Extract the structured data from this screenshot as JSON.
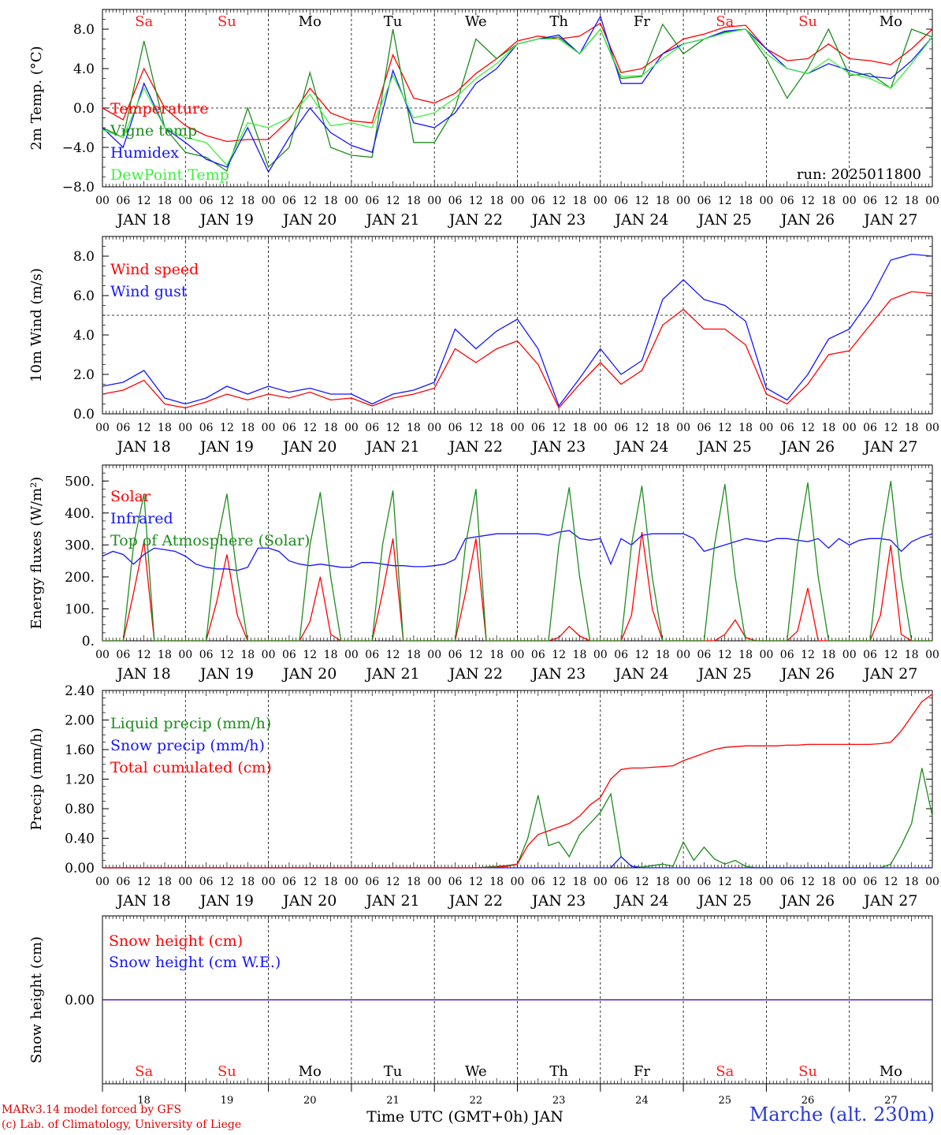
{
  "footer": {
    "credit_line_1": "MARv3.14 model forced by GFS",
    "credit_line_2": "(c) Lab. of Climatology, University of Liege",
    "station": "Marche (alt. 230m)",
    "time_axis_title": "Time UTC (GMT+0h) JAN"
  },
  "colors": {
    "red": "#ff0000",
    "darkgreen": "#1e8c1e",
    "blue": "#1515ff",
    "lightgreen": "#3cf03c",
    "label_red": "#ff1a1a"
  },
  "time_axis": {
    "days": [
      "JAN 18",
      "JAN 19",
      "JAN 20",
      "JAN 21",
      "JAN 22",
      "JAN 23",
      "JAN 24",
      "JAN 25",
      "JAN 26",
      "JAN 27"
    ],
    "weekdays": [
      "Sa",
      "Su",
      "Mo",
      "Tu",
      "We",
      "Th",
      "Fr",
      "Sa",
      "Su",
      "Mo"
    ],
    "weekday_colors": [
      "#ff1a1a",
      "#ff1a1a",
      "#000000",
      "#000000",
      "#000000",
      "#000000",
      "#000000",
      "#ff1a1a",
      "#ff1a1a",
      "#000000"
    ],
    "bottom_day_numbers": [
      "18",
      "19",
      "20",
      "21",
      "22",
      "23",
      "24",
      "25",
      "26",
      "27"
    ],
    "hour_labels": [
      "00",
      "06",
      "12",
      "18"
    ]
  },
  "chart_data": [
    {
      "type": "line",
      "ylabel": "2m Temp. (°C)",
      "ylim": [
        -8,
        10
      ],
      "yticks": [
        "8.0",
        "4.0",
        "0.0",
        "−4.0",
        "−8.0"
      ],
      "ytick_values": [
        8,
        4,
        0,
        -4,
        -8
      ],
      "reference_line": 0,
      "annotation": "run: 2025011800",
      "x_hours_from_jan18_00": [
        0,
        6,
        12,
        18,
        24,
        30,
        36,
        42,
        48,
        54,
        60,
        66,
        72,
        78,
        84,
        90,
        96,
        102,
        108,
        114,
        120,
        126,
        132,
        138,
        144,
        150,
        156,
        162,
        168,
        174,
        180,
        186,
        192,
        198,
        204,
        210,
        216,
        222,
        228,
        234,
        240
      ],
      "series": [
        {
          "name": "Temperature",
          "color": "red",
          "values": [
            0,
            -1.2,
            4,
            0,
            -1.8,
            -2.8,
            -3.4,
            -3.2,
            -3.2,
            -1.2,
            2,
            -0.5,
            -1.3,
            -1.5,
            5.4,
            1,
            0.5,
            1.5,
            3.5,
            5,
            6.8,
            7.3,
            7,
            7.3,
            8.6,
            3.6,
            4,
            5.5,
            7,
            7.5,
            8.2,
            8.4,
            6,
            4.8,
            5,
            6.5,
            5,
            4.8,
            4.4,
            6,
            8
          ]
        },
        {
          "name": "Vigne temp",
          "color": "darkgreen",
          "values": [
            -2,
            -3,
            6.8,
            -2,
            -4.5,
            -5,
            -6.4,
            0,
            -6,
            -4,
            3.6,
            -4,
            -4.8,
            -5,
            8,
            -3.5,
            -3.5,
            0,
            7,
            5,
            6.5,
            7,
            7.2,
            5.5,
            8,
            3,
            3.2,
            8.5,
            5.5,
            7,
            7.7,
            8,
            5,
            1,
            4,
            8,
            3.3,
            3.5,
            2,
            8,
            7.2
          ]
        },
        {
          "name": "Humidex",
          "color": "blue",
          "values": [
            -2,
            -4,
            2.5,
            -2,
            -3.5,
            -5.2,
            -6,
            -2,
            -6.5,
            -3,
            0,
            -2.5,
            -3.8,
            -4.5,
            3.8,
            -1.5,
            -2,
            -0.5,
            2.5,
            4,
            6.5,
            7,
            7.4,
            5.5,
            9.3,
            2.5,
            2.5,
            5.5,
            6.5,
            7,
            7.8,
            8,
            6,
            4,
            3.5,
            4.5,
            3.8,
            3.2,
            3,
            4.8,
            7.2
          ]
        },
        {
          "name": "DewPoint Temp",
          "color": "lightgreen",
          "values": [
            -2.2,
            -3,
            2,
            -2,
            -3,
            -3.5,
            -5.8,
            -1.5,
            -2,
            -1,
            1.4,
            -1.8,
            -1.5,
            -2,
            3.3,
            -1,
            -0.5,
            1,
            3,
            4.5,
            6.5,
            7,
            7,
            5.5,
            8,
            3.2,
            3.3,
            5,
            6.5,
            7,
            7.6,
            8,
            5.5,
            4,
            3.5,
            5,
            3.5,
            3,
            2,
            4.5,
            7.2
          ]
        }
      ]
    },
    {
      "type": "line",
      "ylabel": "10m Wind (m/s)",
      "ylim": [
        0,
        9
      ],
      "yticks": [
        "8.0",
        "6.0",
        "4.0",
        "2.0",
        "0.0"
      ],
      "ytick_values": [
        8,
        6,
        4,
        2,
        0
      ],
      "reference_line": 5,
      "x_hours_from_jan18_00": [
        0,
        6,
        12,
        18,
        24,
        30,
        36,
        42,
        48,
        54,
        60,
        66,
        72,
        78,
        84,
        90,
        96,
        102,
        108,
        114,
        120,
        126,
        132,
        138,
        144,
        150,
        156,
        162,
        168,
        174,
        180,
        186,
        192,
        198,
        204,
        210,
        216,
        222,
        228,
        234,
        240
      ],
      "series": [
        {
          "name": "Wind speed",
          "color": "red",
          "values": [
            1,
            1.2,
            1.7,
            0.5,
            0.3,
            0.6,
            1,
            0.7,
            1,
            0.8,
            1.1,
            0.7,
            0.8,
            0.4,
            0.8,
            1,
            1.3,
            3.3,
            2.6,
            3.3,
            3.7,
            2.5,
            0.3,
            1.5,
            2.6,
            1.5,
            2.2,
            4.5,
            5.3,
            4.3,
            4.3,
            3.5,
            1,
            0.5,
            1.5,
            3,
            3.2,
            4.5,
            5.8,
            6.2,
            6.1
          ]
        },
        {
          "name": "Wind gust",
          "color": "blue",
          "values": [
            1.4,
            1.6,
            2.2,
            0.8,
            0.5,
            0.8,
            1.4,
            1,
            1.4,
            1.1,
            1.3,
            1,
            1,
            0.5,
            1,
            1.2,
            1.6,
            4.3,
            3.3,
            4.2,
            4.8,
            3.3,
            0.4,
            1.8,
            3.3,
            2,
            2.7,
            5.8,
            6.8,
            5.8,
            5.5,
            4.7,
            1.3,
            0.7,
            2,
            3.8,
            4.3,
            5.8,
            7.8,
            8.1,
            8
          ]
        }
      ]
    },
    {
      "type": "line",
      "ylabel": "Energy fluxes (W/m²)",
      "ylim": [
        0,
        550
      ],
      "yticks": [
        "500.",
        "400.",
        "300.",
        "200.",
        "100.",
        "0."
      ],
      "ytick_values": [
        500,
        400,
        300,
        200,
        100,
        0
      ],
      "x_hours_from_jan18_00": [
        0,
        3,
        6,
        9,
        12,
        15,
        18,
        21,
        24,
        27,
        30,
        33,
        36,
        39,
        42,
        45,
        48,
        51,
        54,
        57,
        60,
        63,
        66,
        69,
        72,
        75,
        78,
        81,
        84,
        87,
        90,
        93,
        96,
        99,
        102,
        105,
        108,
        111,
        114,
        117,
        120,
        123,
        126,
        129,
        132,
        135,
        138,
        141,
        144,
        147,
        150,
        153,
        156,
        159,
        162,
        165,
        168,
        171,
        174,
        177,
        180,
        183,
        186,
        189,
        192,
        195,
        198,
        201,
        204,
        207,
        210,
        213,
        216,
        219,
        222,
        225,
        228,
        231,
        234,
        237,
        240
      ],
      "series": [
        {
          "name": "Solar",
          "color": "red",
          "values": [
            0,
            0,
            0,
            150,
            310,
            0,
            0,
            0,
            0,
            0,
            0,
            120,
            270,
            80,
            0,
            0,
            0,
            0,
            0,
            0,
            60,
            200,
            20,
            0,
            0,
            0,
            0,
            150,
            320,
            0,
            0,
            0,
            0,
            0,
            0,
            150,
            320,
            0,
            0,
            0,
            0,
            0,
            0,
            0,
            10,
            45,
            15,
            0,
            0,
            0,
            0,
            80,
            340,
            100,
            0,
            0,
            0,
            0,
            0,
            0,
            20,
            65,
            10,
            0,
            0,
            0,
            0,
            30,
            165,
            0,
            0,
            0,
            0,
            0,
            0,
            80,
            300,
            20,
            0,
            0,
            0
          ]
        },
        {
          "name": "Infrared",
          "color": "blue",
          "values": [
            265,
            280,
            270,
            240,
            270,
            290,
            285,
            280,
            265,
            240,
            230,
            225,
            225,
            220,
            230,
            290,
            290,
            280,
            250,
            240,
            235,
            240,
            235,
            230,
            230,
            245,
            245,
            240,
            235,
            235,
            232,
            232,
            235,
            240,
            255,
            320,
            325,
            330,
            335,
            335,
            335,
            335,
            335,
            330,
            340,
            345,
            320,
            315,
            320,
            240,
            320,
            300,
            330,
            335,
            335,
            335,
            335,
            320,
            280,
            290,
            300,
            310,
            320,
            315,
            310,
            320,
            320,
            315,
            310,
            320,
            290,
            320,
            300,
            315,
            320,
            320,
            315,
            280,
            310,
            325,
            335
          ]
        },
        {
          "name": "Top of Atmosphere (Solar)",
          "color": "darkgreen",
          "values": [
            0,
            0,
            0,
            300,
            460,
            0,
            0,
            0,
            0,
            0,
            0,
            300,
            460,
            200,
            0,
            0,
            0,
            0,
            0,
            0,
            300,
            465,
            200,
            0,
            0,
            0,
            0,
            300,
            470,
            0,
            0,
            0,
            0,
            0,
            0,
            300,
            475,
            0,
            0,
            0,
            0,
            0,
            0,
            0,
            300,
            480,
            200,
            0,
            0,
            0,
            0,
            300,
            485,
            200,
            0,
            0,
            0,
            0,
            0,
            300,
            490,
            200,
            0,
            0,
            0,
            0,
            0,
            300,
            495,
            200,
            0,
            0,
            0,
            0,
            0,
            300,
            500,
            200,
            0,
            0,
            0
          ]
        }
      ]
    },
    {
      "type": "line",
      "ylabel": "Precip (mm/h)",
      "ylim": [
        0,
        2.4
      ],
      "yticks": [
        "2.40",
        "2.00",
        "1.60",
        "1.20",
        "0.80",
        "0.40",
        "0.00"
      ],
      "ytick_values": [
        2.4,
        2.0,
        1.6,
        1.2,
        0.8,
        0.4,
        0.0
      ],
      "x_hours_from_jan18_00": [
        0,
        12,
        24,
        36,
        48,
        60,
        72,
        84,
        96,
        108,
        114,
        117,
        120,
        123,
        126,
        129,
        132,
        135,
        138,
        141,
        144,
        147,
        150,
        153,
        156,
        159,
        162,
        165,
        168,
        171,
        174,
        177,
        180,
        183,
        186,
        189,
        192,
        195,
        198,
        201,
        204,
        207,
        210,
        213,
        216,
        219,
        222,
        225,
        228,
        231,
        234,
        237,
        240
      ],
      "series": [
        {
          "name": "Liquid precip (mm/h)",
          "color": "darkgreen",
          "values": [
            0,
            0,
            0,
            0,
            0,
            0,
            0,
            0,
            0,
            0,
            0.02,
            0.03,
            0.05,
            0.4,
            0.98,
            0.3,
            0.35,
            0.15,
            0.45,
            0.6,
            0.75,
            1.0,
            0.15,
            0.02,
            0.01,
            0.03,
            0.05,
            0.02,
            0.35,
            0.1,
            0.28,
            0.12,
            0.05,
            0.1,
            0.02,
            0,
            0,
            0,
            0,
            0,
            0,
            0,
            0,
            0,
            0,
            0,
            0,
            0,
            0.05,
            0.3,
            0.6,
            1.35,
            0.7
          ]
        },
        {
          "name": "Snow precip (mm/h)",
          "color": "blue",
          "values": [
            0,
            0,
            0,
            0,
            0,
            0,
            0,
            0,
            0,
            0,
            0,
            0,
            0,
            0,
            0,
            0,
            0,
            0,
            0,
            0,
            0,
            0,
            0.15,
            0.02,
            0,
            0,
            0,
            0,
            0,
            0,
            0,
            0,
            0,
            0,
            0,
            0,
            0,
            0,
            0,
            0,
            0,
            0,
            0,
            0,
            0,
            0,
            0,
            0,
            0,
            0,
            0,
            0,
            0
          ]
        },
        {
          "name": "Total cumulated (cm)",
          "color": "red",
          "values": [
            0,
            0,
            0,
            0,
            0,
            0,
            0,
            0,
            0,
            0,
            0.01,
            0.02,
            0.05,
            0.3,
            0.45,
            0.5,
            0.55,
            0.6,
            0.7,
            0.85,
            0.95,
            1.2,
            1.33,
            1.35,
            1.35,
            1.36,
            1.37,
            1.38,
            1.45,
            1.5,
            1.55,
            1.6,
            1.63,
            1.64,
            1.65,
            1.65,
            1.65,
            1.65,
            1.66,
            1.66,
            1.67,
            1.67,
            1.67,
            1.67,
            1.67,
            1.67,
            1.67,
            1.68,
            1.7,
            1.85,
            2.05,
            2.25,
            2.35
          ]
        }
      ]
    },
    {
      "type": "line",
      "ylabel": "Snow height (cm)",
      "ylim": [
        -1,
        1
      ],
      "yticks": [
        "0.00"
      ],
      "ytick_values": [
        0
      ],
      "x_hours_from_jan18_00": [
        0,
        240
      ],
      "series": [
        {
          "name": "Snow height (cm)",
          "color": "red",
          "values": [
            0,
            0
          ]
        },
        {
          "name": "Snow height (cm W.E.)",
          "color": "blue",
          "values": [
            0,
            0
          ]
        }
      ]
    }
  ]
}
